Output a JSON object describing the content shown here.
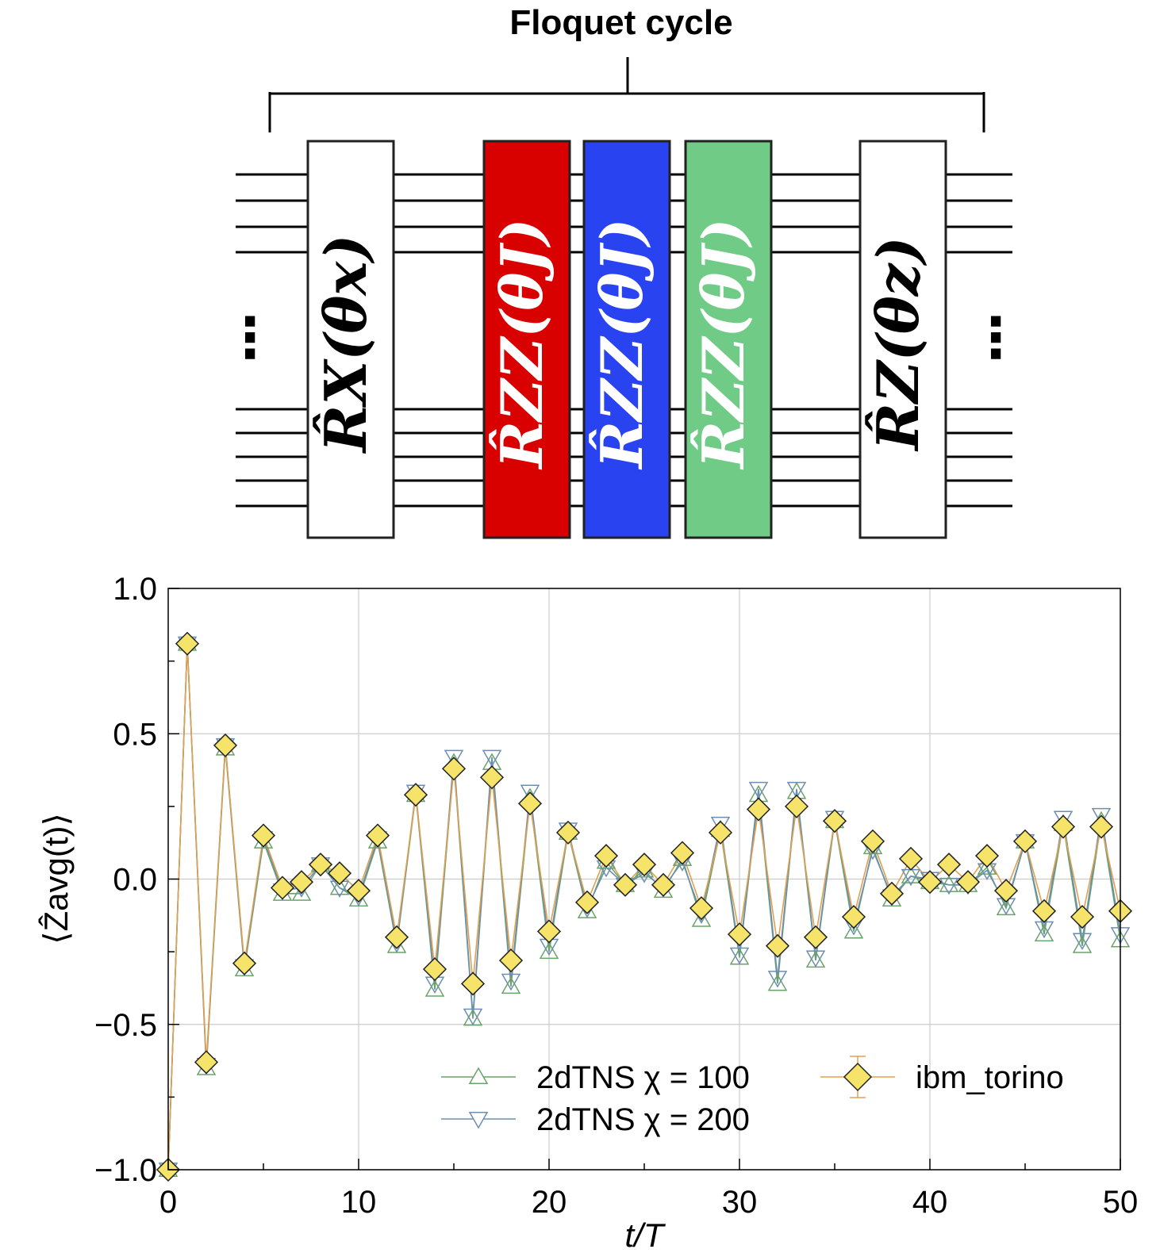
{
  "circuit": {
    "title": "Floquet cycle",
    "ellipsis": "⋮",
    "gates": [
      {
        "label": "R̂X(θx)",
        "fill": "#ffffff",
        "text_color": "#000000"
      },
      {
        "label": "R̂ZZ(θJ)",
        "fill": "#d90000",
        "text_color": "#ffffff"
      },
      {
        "label": "R̂ZZ(θJ)",
        "fill": "#2a43f0",
        "text_color": "#ffffff"
      },
      {
        "label": "R̂ZZ(θJ)",
        "fill": "#6fcb86",
        "text_color": "#ffffff"
      },
      {
        "label": "R̂Z(θz)",
        "fill": "#ffffff",
        "text_color": "#000000"
      }
    ]
  },
  "chart_data": {
    "type": "line",
    "xlabel": "t/T",
    "ylabel": "⟨Ẑavg(t)⟩",
    "xlim": [
      0,
      50
    ],
    "ylim": [
      -1.0,
      1.0
    ],
    "xticks": [
      "0",
      "10",
      "20",
      "30",
      "40",
      "50"
    ],
    "yticks": [
      "1.0",
      "0.5",
      "0.0",
      "−0.5",
      "−1.0"
    ],
    "grid": true,
    "legend_position": "lower-right",
    "x": [
      0,
      1,
      2,
      3,
      4,
      5,
      6,
      7,
      8,
      9,
      10,
      11,
      12,
      13,
      14,
      15,
      16,
      17,
      18,
      19,
      20,
      21,
      22,
      23,
      24,
      25,
      26,
      27,
      28,
      29,
      30,
      31,
      32,
      33,
      34,
      35,
      36,
      37,
      38,
      39,
      40,
      41,
      42,
      43,
      44,
      45,
      46,
      47,
      48,
      49,
      50
    ],
    "series": [
      {
        "name": "2dTNS χ = 100",
        "color": "#6aa36a",
        "marker": "triangle-up",
        "values": [
          -1.0,
          0.81,
          -0.65,
          0.45,
          -0.31,
          0.13,
          -0.05,
          -0.05,
          0.05,
          -0.03,
          -0.07,
          0.13,
          -0.23,
          0.29,
          -0.38,
          0.4,
          -0.48,
          0.4,
          -0.37,
          0.28,
          -0.25,
          0.16,
          -0.11,
          0.06,
          -0.02,
          0.03,
          -0.04,
          0.07,
          -0.14,
          0.17,
          -0.27,
          0.29,
          -0.36,
          0.3,
          -0.28,
          0.2,
          -0.18,
          0.11,
          -0.07,
          0.01,
          -0.01,
          -0.02,
          -0.02,
          0.04,
          -0.1,
          0.13,
          -0.19,
          0.19,
          -0.23,
          0.2,
          -0.21
        ]
      },
      {
        "name": "2dTNS χ = 200",
        "color": "#6b8fb0",
        "marker": "triangle-down",
        "values": [
          -1.0,
          0.81,
          -0.64,
          0.46,
          -0.3,
          0.14,
          -0.04,
          -0.03,
          0.05,
          -0.03,
          -0.06,
          0.14,
          -0.22,
          0.3,
          -0.36,
          0.42,
          -0.47,
          0.42,
          -0.35,
          0.3,
          -0.23,
          0.17,
          -0.1,
          0.04,
          -0.02,
          0.02,
          -0.03,
          0.06,
          -0.12,
          0.19,
          -0.26,
          0.31,
          -0.34,
          0.31,
          -0.27,
          0.21,
          -0.16,
          0.1,
          -0.06,
          0.01,
          -0.0,
          -0.02,
          -0.02,
          0.03,
          -0.09,
          0.13,
          -0.17,
          0.21,
          -0.21,
          0.22,
          -0.19
        ]
      },
      {
        "name": "ibm_torino",
        "color": "#e0a050",
        "marker": "diamond",
        "marker_fill": "#f5e36a",
        "values": [
          -1.0,
          0.81,
          -0.63,
          0.46,
          -0.29,
          0.15,
          -0.03,
          -0.01,
          0.05,
          0.02,
          -0.04,
          0.15,
          -0.2,
          0.29,
          -0.31,
          0.38,
          -0.36,
          0.35,
          -0.28,
          0.26,
          -0.18,
          0.16,
          -0.08,
          0.08,
          -0.02,
          0.05,
          -0.02,
          0.09,
          -0.1,
          0.16,
          -0.19,
          0.24,
          -0.23,
          0.25,
          -0.2,
          0.2,
          -0.13,
          0.13,
          -0.05,
          0.07,
          -0.01,
          0.05,
          -0.01,
          0.08,
          -0.04,
          0.13,
          -0.11,
          0.18,
          -0.13,
          0.18,
          -0.11
        ]
      }
    ]
  }
}
